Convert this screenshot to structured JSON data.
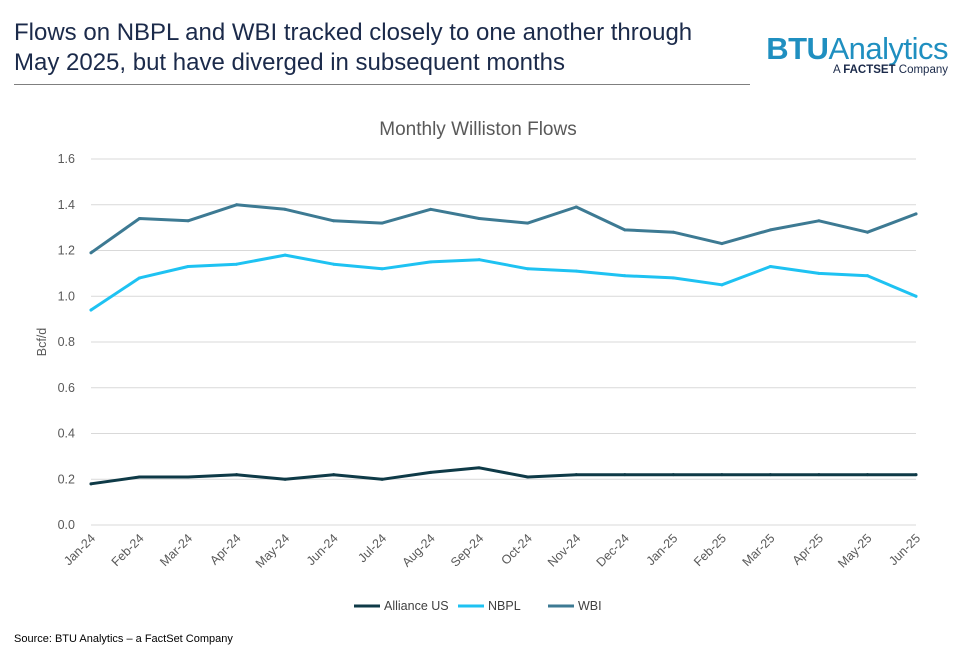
{
  "header": {
    "title": "Flows on NBPL and WBI tracked closely to one another through May 2025, but have diverged in subsequent months"
  },
  "brand": {
    "name_bold": "BTU",
    "name_rest": "Analytics",
    "sub_prefix": "A",
    "sub_bold": "FACTSET",
    "sub_rest": "Company"
  },
  "footer": {
    "source": "Source: BTU Analytics – a FactSet Company"
  },
  "chart_data": {
    "type": "line",
    "title": "Monthly Williston Flows",
    "xlabel": "",
    "ylabel": "Bcf/d",
    "ylim": [
      0,
      1.6
    ],
    "yticks": [
      "0.0",
      "0.2",
      "0.4",
      "0.6",
      "0.8",
      "1.0",
      "1.2",
      "1.4",
      "1.6"
    ],
    "grid": true,
    "legend": "bottom",
    "categories": [
      "Jan-24",
      "Feb-24",
      "Mar-24",
      "Apr-24",
      "May-24",
      "Jun-24",
      "Jul-24",
      "Aug-24",
      "Sep-24",
      "Oct-24",
      "Nov-24",
      "Dec-24",
      "Jan-25",
      "Feb-25",
      "Mar-25",
      "Apr-25",
      "May-25",
      "Jun-25"
    ],
    "series": [
      {
        "name": "Alliance US",
        "color": "#0e3a47",
        "values": [
          0.18,
          0.21,
          0.21,
          0.22,
          0.2,
          0.22,
          0.2,
          0.23,
          0.25,
          0.21,
          0.22,
          0.22,
          0.22,
          0.22,
          0.22,
          0.22,
          0.22,
          0.22
        ]
      },
      {
        "name": "NBPL",
        "color": "#1ec2f2",
        "values": [
          0.94,
          1.08,
          1.13,
          1.14,
          1.18,
          1.14,
          1.12,
          1.15,
          1.16,
          1.12,
          1.11,
          1.09,
          1.08,
          1.05,
          1.13,
          1.1,
          1.09,
          1.0
        ]
      },
      {
        "name": "WBI",
        "color": "#3d7a93",
        "values": [
          1.19,
          1.34,
          1.33,
          1.4,
          1.38,
          1.33,
          1.32,
          1.38,
          1.34,
          1.32,
          1.39,
          1.29,
          1.28,
          1.23,
          1.29,
          1.33,
          1.28,
          1.36
        ]
      }
    ]
  }
}
